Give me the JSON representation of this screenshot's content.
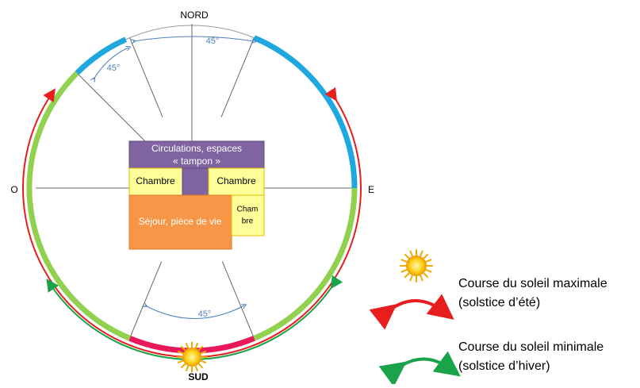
{
  "compass": {
    "north": "NORD",
    "west": "O",
    "east": "E",
    "south": "SUD"
  },
  "angles": [
    "45°",
    "45°",
    "45°"
  ],
  "rooms": {
    "circulation": "Circulations, espaces « tampon »",
    "bedroom_left": "Chambre",
    "bedroom_right": "Chambre",
    "living": "Séjour, pièce de vie",
    "bedroom_small": "Cham bre"
  },
  "legend": [
    {
      "title": "Course du soleil maximale",
      "subtitle": "(solstice d’été)"
    },
    {
      "title": "Course du soleil minimale",
      "subtitle": "(solstice d’hiver)"
    }
  ]
}
